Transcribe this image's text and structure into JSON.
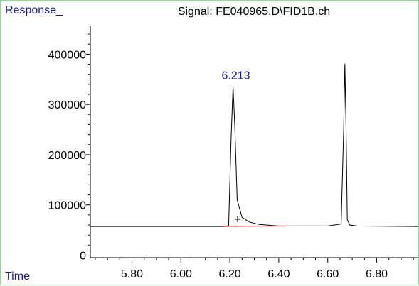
{
  "chart_data": {
    "type": "line",
    "title": "Signal: FE040965.D\\FID1B.ch",
    "ylabel": "Response_",
    "xlabel": "Time",
    "xlim": [
      5.63,
      6.97
    ],
    "ylim": [
      -5000,
      450000
    ],
    "x_ticks": [
      "5.80",
      "6.00",
      "6.20",
      "6.40",
      "6.60",
      "6.80"
    ],
    "y_ticks": [
      "0",
      "100000",
      "200000",
      "300000",
      "400000"
    ],
    "peak_annotation": {
      "label": "6.213",
      "x": 6.213,
      "y": 336000
    },
    "marker": {
      "symbol": "+",
      "x": 6.232,
      "y": 72000
    },
    "colors": {
      "signal": "#000000",
      "baseline": "#e02020",
      "annotation": "#1010d0",
      "axis_label": "#1010d0",
      "frame": "#7fe07f"
    },
    "series": [
      {
        "x": [
          5.63,
          6.0,
          6.18,
          6.195,
          6.205,
          6.213,
          6.22,
          6.23,
          6.25,
          6.28,
          6.32,
          6.4,
          6.5,
          6.6,
          6.655,
          6.665,
          6.67,
          6.675,
          6.68,
          6.69,
          6.72,
          6.97
        ],
        "y": [
          57000,
          57000,
          57000,
          58000,
          230000,
          336000,
          260000,
          110000,
          75000,
          66000,
          61000,
          58000,
          58000,
          58000,
          62000,
          250000,
          381000,
          250000,
          70000,
          60000,
          58000,
          57000
        ]
      },
      {
        "x": [
          6.17,
          6.43
        ],
        "y": [
          57000,
          58000
        ]
      }
    ]
  }
}
